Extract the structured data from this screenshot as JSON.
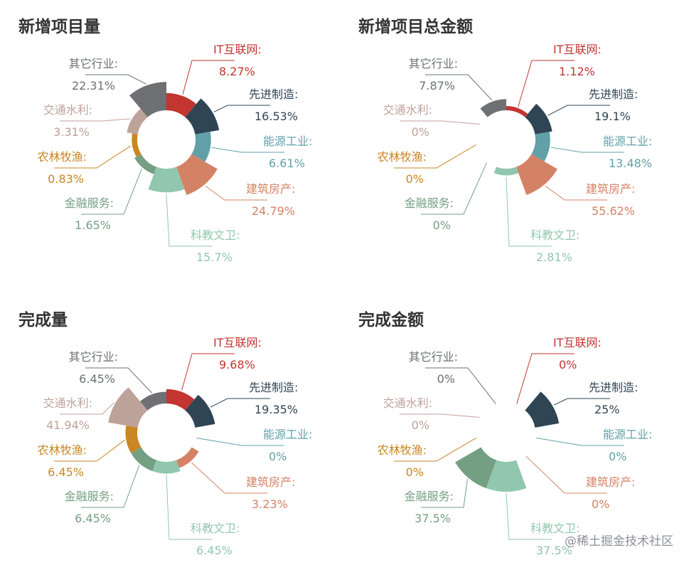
{
  "watermark": "@稀土掘金技术社区",
  "colors": {
    "IT互联网": "#c23531",
    "先进制造": "#2f4554",
    "能源工业": "#61a0a8",
    "建筑房产": "#d48265",
    "科教文卫": "#91c7ae",
    "金融服务": "#749f83",
    "农林牧渔": "#ca8622",
    "交通水利": "#bda29a",
    "其它行业": "#6e7074"
  },
  "chart_data": [
    {
      "type": "pie",
      "variant": "rose-donut",
      "title": "新增项目量",
      "slices": [
        {
          "name": "IT互联网",
          "label": "IT互联网:",
          "value": 8.27,
          "display": "8.27%"
        },
        {
          "name": "先进制造",
          "label": "先进制造:",
          "value": 16.53,
          "display": "16.53%"
        },
        {
          "name": "能源工业",
          "label": "能源工业:",
          "value": 6.61,
          "display": "6.61%"
        },
        {
          "name": "建筑房产",
          "label": "建筑房产:",
          "value": 24.79,
          "display": "24.79%"
        },
        {
          "name": "科教文卫",
          "label": "科教文卫:",
          "value": 15.7,
          "display": "15.7%"
        },
        {
          "name": "金融服务",
          "label": "金融服务:",
          "value": 1.65,
          "display": "1.65%"
        },
        {
          "name": "农林牧渔",
          "label": "农林牧渔:",
          "value": 0.83,
          "display": "0.83%"
        },
        {
          "name": "交通水利",
          "label": "交通水利:",
          "value": 3.31,
          "display": "3.31%"
        },
        {
          "name": "其它行业",
          "label": "其它行业:",
          "value": 22.31,
          "display": "22.31%"
        }
      ]
    },
    {
      "type": "pie",
      "variant": "rose-donut",
      "title": "新增项目总金额",
      "slices": [
        {
          "name": "IT互联网",
          "label": "IT互联网:",
          "value": 1.12,
          "display": "1.12%"
        },
        {
          "name": "先进制造",
          "label": "先进制造:",
          "value": 19.1,
          "display": "19.1%"
        },
        {
          "name": "能源工业",
          "label": "能源工业:",
          "value": 13.48,
          "display": "13.48%"
        },
        {
          "name": "建筑房产",
          "label": "建筑房产:",
          "value": 55.62,
          "display": "55.62%"
        },
        {
          "name": "科教文卫",
          "label": "科教文卫:",
          "value": 2.81,
          "display": "2.81%"
        },
        {
          "name": "金融服务",
          "label": "金融服务:",
          "value": 0,
          "display": "0%"
        },
        {
          "name": "农林牧渔",
          "label": "农林牧渔:",
          "value": 0,
          "display": "0%"
        },
        {
          "name": "交通水利",
          "label": "交通水利:",
          "value": 0,
          "display": "0%"
        },
        {
          "name": "其它行业",
          "label": "其它行业:",
          "value": 7.87,
          "display": "7.87%"
        }
      ]
    },
    {
      "type": "pie",
      "variant": "rose-donut",
      "title": "完成量",
      "slices": [
        {
          "name": "IT互联网",
          "label": "IT互联网:",
          "value": 9.68,
          "display": "9.68%"
        },
        {
          "name": "先进制造",
          "label": "先进制造:",
          "value": 19.35,
          "display": "19.35%"
        },
        {
          "name": "能源工业",
          "label": "能源工业:",
          "value": 0,
          "display": "0%"
        },
        {
          "name": "建筑房产",
          "label": "建筑房产:",
          "value": 3.23,
          "display": "3.23%"
        },
        {
          "name": "科教文卫",
          "label": "科教文卫:",
          "value": 6.45,
          "display": "6.45%"
        },
        {
          "name": "金融服务",
          "label": "金融服务:",
          "value": 6.45,
          "display": "6.45%"
        },
        {
          "name": "农林牧渔",
          "label": "农林牧渔:",
          "value": 6.45,
          "display": "6.45%"
        },
        {
          "name": "交通水利",
          "label": "交通水利:",
          "value": 41.94,
          "display": "41.94%"
        },
        {
          "name": "其它行业",
          "label": "其它行业:",
          "value": 6.45,
          "display": "6.45%"
        }
      ]
    },
    {
      "type": "pie",
      "variant": "rose-donut",
      "title": "完成金额",
      "slices": [
        {
          "name": "IT互联网",
          "label": "IT互联网:",
          "value": 0,
          "display": "0%"
        },
        {
          "name": "先进制造",
          "label": "先进制造:",
          "value": 25,
          "display": "25%"
        },
        {
          "name": "能源工业",
          "label": "能源工业:",
          "value": 0,
          "display": "0%"
        },
        {
          "name": "建筑房产",
          "label": "建筑房产:",
          "value": 0,
          "display": "0%"
        },
        {
          "name": "科教文卫",
          "label": "科教文卫:",
          "value": 37.5,
          "display": "37.5%"
        },
        {
          "name": "金融服务",
          "label": "金融服务:",
          "value": 37.5,
          "display": "37.5%"
        },
        {
          "name": "农林牧渔",
          "label": "农林牧渔:",
          "value": 0,
          "display": "0%"
        },
        {
          "name": "交通水利",
          "label": "交通水利:",
          "value": 0,
          "display": "0%"
        },
        {
          "name": "其它行业",
          "label": "其它行业:",
          "value": 0,
          "display": "0%"
        }
      ]
    }
  ]
}
